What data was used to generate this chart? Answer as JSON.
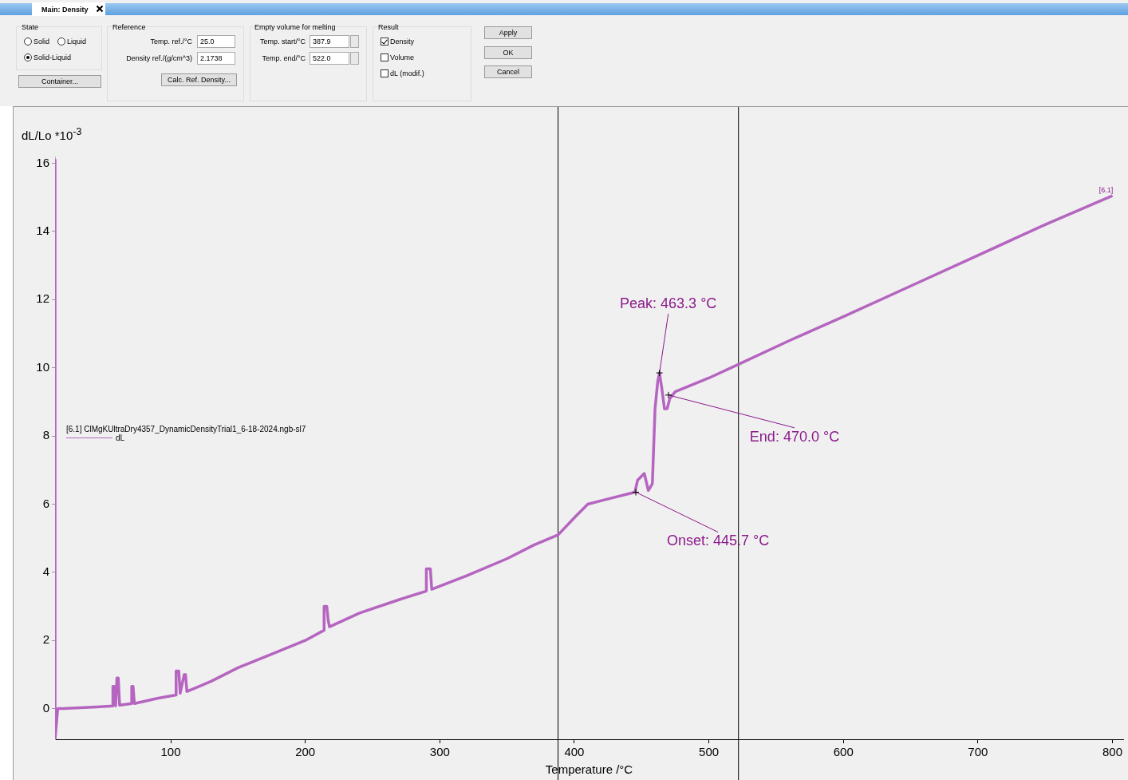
{
  "chart_data": [
    {
      "type": "other",
      "annotations": [
        "Main: Density",
        "State",
        "Solid",
        "Liquid",
        "Solid-Liquid",
        "Container...",
        "Reference",
        "Temp. ref./°C",
        "25.0",
        "Density ref./(g/cm^3)",
        "2.1738",
        "Calc. Ref. Density...",
        "Empty volume for melting",
        "Temp. start/°C",
        "387.9",
        "Temp. end/°C",
        "522.0",
        "Result",
        "Density",
        "Volume",
        "dL (modif.)",
        "Apply",
        "OK",
        "Cancel"
      ]
    },
    {
      "type": "line",
      "xlabel": "Temperature /°C",
      "ylabel": "dL/Lo *10$^{-3}$",
      "legend_title": "[6.1]  ClMgKUltraDry4357_DynamicDensityTrial1_6-18-2024.ngb-sl7",
      "legend": "left",
      "grid": false,
      "marker": "none",
      "line_style": "solid",
      "xlim": [
        14,
        808
      ],
      "ylim": [
        -0.9,
        16.2
      ],
      "xticks": [
        100,
        200,
        300,
        400,
        500,
        600,
        700,
        800
      ],
      "yticks": [
        0,
        2,
        4,
        6,
        8,
        10,
        12,
        14,
        16
      ],
      "series": [
        {
          "name": "dL",
          "color": "#b565c0",
          "x": [
            14,
            14,
            16,
            20,
            45,
            57,
            57,
            58,
            59,
            60,
            61,
            62,
            71,
            71,
            72,
            73,
            90,
            104,
            104,
            106,
            107,
            110,
            111,
            112,
            130,
            150,
            175,
            200,
            214,
            214,
            216,
            217,
            218,
            240,
            270,
            290,
            290,
            293,
            294,
            320,
            350,
            370,
            388,
            400,
            410,
            420,
            445,
            447,
            452,
            455,
            458,
            460,
            462,
            463.3,
            465,
            467,
            469,
            471,
            475,
            500,
            522,
            560,
            600,
            650,
            700,
            750,
            800
          ],
          "values": [
            16.1,
            -0.9,
            0,
            0,
            0.05,
            0.08,
            0.65,
            0.65,
            0.08,
            0.9,
            0.9,
            0.1,
            0.15,
            0.65,
            0.65,
            0.15,
            0.3,
            0.4,
            1.1,
            1.1,
            0.45,
            1.0,
            1.0,
            0.5,
            0.8,
            1.2,
            1.6,
            2.0,
            2.3,
            3.0,
            3.0,
            2.6,
            2.4,
            2.8,
            3.2,
            3.45,
            4.1,
            4.1,
            3.5,
            3.9,
            4.4,
            4.8,
            5.1,
            5.6,
            6.0,
            6.1,
            6.35,
            6.7,
            6.9,
            6.4,
            6.6,
            8.8,
            9.6,
            9.85,
            9.4,
            8.8,
            8.8,
            9.1,
            9.3,
            9.7,
            10.1,
            10.8,
            11.5,
            12.4,
            13.3,
            14.2,
            15.05
          ]
        }
      ],
      "ref_lines": [
        {
          "axis": "x",
          "value": 387.9,
          "color": "#000000"
        },
        {
          "axis": "x",
          "value": 522.0,
          "color": "#000000"
        }
      ],
      "annotations": [
        {
          "text": "Peak: 463.3 °C",
          "x": 463.3,
          "y": 9.85
        },
        {
          "text": "Onset: 445.7 °C",
          "x": 445.7,
          "y": 6.35
        },
        {
          "text": "End: 470.0 °C",
          "x": 470.0,
          "y": 9.2
        },
        {
          "text": "[6.1]",
          "x": 800,
          "y": 15.05
        }
      ]
    }
  ]
}
